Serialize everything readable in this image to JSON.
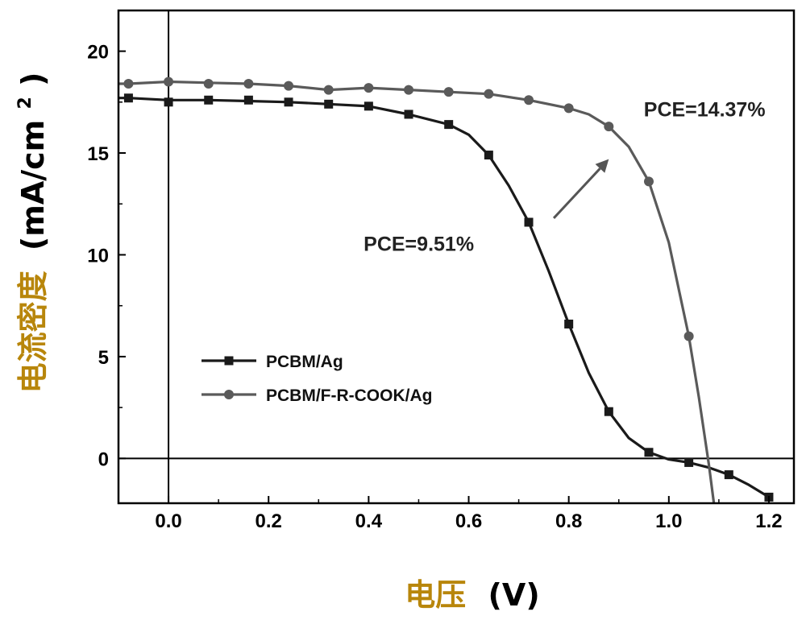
{
  "chart_data": {
    "type": "line",
    "xlabel_main": "电压",
    "xlabel_unit": "(V)",
    "ylabel_main": "电流密度",
    "ylabel_unit": "(mA/cm",
    "ylabel_sup": "2",
    "ylabel_close": ")",
    "xlim": [
      -0.1,
      1.25
    ],
    "ylim": [
      -2.2,
      22
    ],
    "x_ticks": [
      0.0,
      0.2,
      0.4,
      0.6,
      0.8,
      1.0,
      1.2
    ],
    "x_tick_labels": [
      "0.0",
      "0.2",
      "0.4",
      "0.6",
      "0.8",
      "1.0",
      "1.2"
    ],
    "y_ticks": [
      0,
      5,
      10,
      15,
      20
    ],
    "y_tick_labels": [
      "0",
      "5",
      "10",
      "15",
      "20"
    ],
    "reference_lines": {
      "x": 0,
      "y": 0
    },
    "legend_position": "lower-left",
    "series": [
      {
        "name": "PCBM/Ag",
        "marker": "square",
        "color": "#1a1a1a",
        "markers_x": [
          -0.08,
          0.0,
          0.08,
          0.16,
          0.24,
          0.32,
          0.4,
          0.48,
          0.56,
          0.64,
          0.72,
          0.8,
          0.88,
          0.96,
          1.04,
          1.12,
          1.2
        ],
        "markers_y": [
          17.7,
          17.5,
          17.6,
          17.6,
          17.5,
          17.4,
          17.3,
          16.9,
          16.4,
          14.9,
          11.6,
          6.6,
          2.3,
          0.3,
          -0.2,
          -0.8,
          -1.9
        ],
        "curve_x": [
          -0.1,
          -0.08,
          0.0,
          0.08,
          0.16,
          0.24,
          0.32,
          0.4,
          0.48,
          0.56,
          0.6,
          0.64,
          0.68,
          0.72,
          0.76,
          0.8,
          0.84,
          0.88,
          0.92,
          0.96,
          1.0,
          1.04,
          1.08,
          1.12,
          1.16,
          1.2
        ],
        "curve_y": [
          17.7,
          17.7,
          17.6,
          17.6,
          17.55,
          17.5,
          17.4,
          17.3,
          16.9,
          16.4,
          15.9,
          14.9,
          13.4,
          11.6,
          9.2,
          6.6,
          4.2,
          2.3,
          1.0,
          0.3,
          -0.05,
          -0.2,
          -0.45,
          -0.8,
          -1.3,
          -1.9
        ]
      },
      {
        "name": "PCBM/F-R-COOK/Ag",
        "marker": "circle",
        "color": "#5a5a5a",
        "markers_x": [
          -0.08,
          0.0,
          0.08,
          0.16,
          0.24,
          0.32,
          0.4,
          0.48,
          0.56,
          0.64,
          0.72,
          0.8,
          0.88,
          0.96,
          1.04
        ],
        "markers_y": [
          18.4,
          18.5,
          18.4,
          18.4,
          18.3,
          18.1,
          18.2,
          18.1,
          18.0,
          17.9,
          17.6,
          17.2,
          16.3,
          13.6,
          6.0
        ],
        "curve_x": [
          -0.1,
          -0.08,
          0.0,
          0.08,
          0.16,
          0.24,
          0.32,
          0.4,
          0.48,
          0.56,
          0.64,
          0.72,
          0.8,
          0.84,
          0.88,
          0.92,
          0.96,
          1.0,
          1.04,
          1.06,
          1.08,
          1.09
        ],
        "curve_y": [
          18.4,
          18.4,
          18.5,
          18.45,
          18.4,
          18.3,
          18.1,
          18.2,
          18.1,
          18.0,
          17.9,
          17.6,
          17.2,
          16.9,
          16.3,
          15.3,
          13.6,
          10.6,
          6.0,
          3.0,
          -0.3,
          -2.2
        ]
      }
    ],
    "annotations": [
      {
        "text": "PCE=14.37%",
        "x": 0.95,
        "y": 16.8
      },
      {
        "text": "PCE=9.51%",
        "x": 0.39,
        "y": 10.2
      }
    ],
    "arrow": {
      "from": [
        0.77,
        11.8
      ],
      "to": [
        0.88,
        14.7
      ]
    }
  }
}
